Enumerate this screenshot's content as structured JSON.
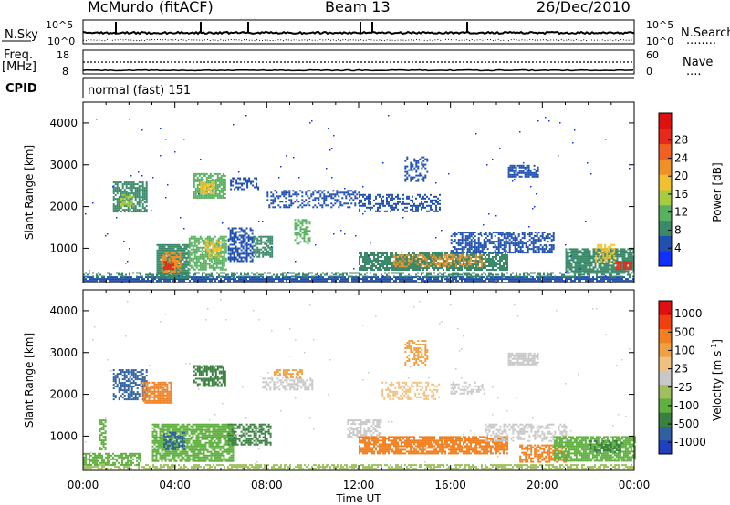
{
  "header": {
    "station": "McMurdo (fitACF)",
    "beam": "Beam 13",
    "date": "26/Dec/2010"
  },
  "noise_panel": {
    "left_label": "N.Sky",
    "right_label": "N.Search",
    "right_label_marker": "........",
    "left_tick_top": "10^5",
    "left_tick_bottom": "10^0",
    "right_tick_top": "10^5",
    "right_tick_bottom": "10^0"
  },
  "freq_panel": {
    "left_label_line1": "Freq.",
    "left_label_line2": "[MHz]",
    "left_tick_top": "18",
    "left_tick_bottom": "8",
    "right_label": "Nave",
    "right_label_marker": "....",
    "right_tick_top": "60",
    "right_tick_bottom": "0"
  },
  "cpid_panel": {
    "label": "CPID",
    "mode_text": "normal (fast) 151"
  },
  "chart_data": [
    {
      "type": "heatmap",
      "name": "power",
      "ylabel": "Slant Range [km]",
      "xlabel": "",
      "x_range_hours": [
        0,
        24
      ],
      "y_range_km": [
        180,
        4500
      ],
      "y_ticks": [
        "1000",
        "2000",
        "3000",
        "4000"
      ],
      "x_ticks": [
        "00:00",
        "04:00",
        "08:00",
        "12:00",
        "16:00",
        "20:00",
        "00:00"
      ],
      "colorbar": {
        "label": "Power [dB]",
        "ticks": [
          "4",
          "8",
          "12",
          "16",
          "20",
          "24",
          "28"
        ],
        "colors": [
          "#1030ff",
          "#2050b0",
          "#3a8a6a",
          "#58b060",
          "#a8cc40",
          "#f0c030",
          "#f09028",
          "#f06020",
          "#e82818",
          "#e01010"
        ]
      },
      "regions": [
        {
          "t0": 0.0,
          "t1": 24.0,
          "r0": 200,
          "r1": 330,
          "color": "#2050b0",
          "density": 0.85
        },
        {
          "t0": 0.0,
          "t1": 24.0,
          "r0": 330,
          "r1": 430,
          "color": "#3a8a6a",
          "density": 0.45
        },
        {
          "t0": 3.2,
          "t1": 4.6,
          "r0": 300,
          "r1": 1100,
          "color": "#3a8a6a",
          "density": 0.9
        },
        {
          "t0": 3.4,
          "t1": 4.2,
          "r0": 450,
          "r1": 900,
          "color": "#f09028",
          "density": 0.7
        },
        {
          "t0": 3.5,
          "t1": 3.9,
          "r0": 500,
          "r1": 700,
          "color": "#e82818",
          "density": 0.8
        },
        {
          "t0": 4.6,
          "t1": 6.2,
          "r0": 500,
          "r1": 1300,
          "color": "#58b060",
          "density": 0.8
        },
        {
          "t0": 5.3,
          "t1": 6.0,
          "r0": 800,
          "r1": 1200,
          "color": "#f0c030",
          "density": 0.6
        },
        {
          "t0": 6.3,
          "t1": 7.4,
          "r0": 700,
          "r1": 1500,
          "color": "#2050b0",
          "density": 0.6
        },
        {
          "t0": 7.4,
          "t1": 8.2,
          "r0": 800,
          "r1": 1300,
          "color": "#3a8a6a",
          "density": 0.7
        },
        {
          "t0": 1.3,
          "t1": 2.8,
          "r0": 1900,
          "r1": 2600,
          "color": "#3a8a6a",
          "density": 0.75
        },
        {
          "t0": 1.6,
          "t1": 2.2,
          "r0": 2000,
          "r1": 2300,
          "color": "#a8cc40",
          "density": 0.6
        },
        {
          "t0": 4.8,
          "t1": 6.2,
          "r0": 2200,
          "r1": 2800,
          "color": "#58b060",
          "density": 0.8
        },
        {
          "t0": 5.1,
          "t1": 5.7,
          "r0": 2300,
          "r1": 2600,
          "color": "#f0c030",
          "density": 0.6
        },
        {
          "t0": 6.4,
          "t1": 7.6,
          "r0": 2400,
          "r1": 2700,
          "color": "#2050b0",
          "density": 0.55
        },
        {
          "t0": 8.0,
          "t1": 12.0,
          "r0": 2000,
          "r1": 2400,
          "color": "#2050b0",
          "density": 0.35
        },
        {
          "t0": 9.2,
          "t1": 9.9,
          "r0": 1100,
          "r1": 1700,
          "color": "#58b060",
          "density": 0.6
        },
        {
          "t0": 12.0,
          "t1": 15.5,
          "r0": 1900,
          "r1": 2300,
          "color": "#2050b0",
          "density": 0.45
        },
        {
          "t0": 14.0,
          "t1": 15.0,
          "r0": 2600,
          "r1": 3200,
          "color": "#2050b0",
          "density": 0.4
        },
        {
          "t0": 12.0,
          "t1": 18.5,
          "r0": 500,
          "r1": 900,
          "color": "#3a8a6a",
          "density": 0.8
        },
        {
          "t0": 13.5,
          "t1": 17.5,
          "r0": 550,
          "r1": 850,
          "color": "#f09028",
          "density": 0.45
        },
        {
          "t0": 16.0,
          "t1": 20.5,
          "r0": 900,
          "r1": 1400,
          "color": "#2050b0",
          "density": 0.55
        },
        {
          "t0": 18.5,
          "t1": 19.8,
          "r0": 2700,
          "r1": 3000,
          "color": "#2050b0",
          "density": 0.6
        },
        {
          "t0": 21.0,
          "t1": 24.0,
          "r0": 400,
          "r1": 1000,
          "color": "#3a8a6a",
          "density": 0.85
        },
        {
          "t0": 22.3,
          "t1": 23.1,
          "r0": 700,
          "r1": 1100,
          "color": "#f0c030",
          "density": 0.5
        },
        {
          "t0": 23.2,
          "t1": 23.9,
          "r0": 500,
          "r1": 700,
          "color": "#e82818",
          "density": 0.85
        }
      ],
      "noise_density": 0.004
    },
    {
      "type": "heatmap",
      "name": "velocity",
      "ylabel": "Slant Range [km]",
      "xlabel": "Time UT",
      "x_range_hours": [
        0,
        24
      ],
      "y_range_km": [
        180,
        4500
      ],
      "y_ticks": [
        "1000",
        "2000",
        "3000",
        "4000"
      ],
      "x_ticks": [
        "00:00",
        "04:00",
        "08:00",
        "12:00",
        "16:00",
        "20:00",
        "00:00"
      ],
      "colorbar": {
        "label": "Velocity [m s",
        "label_sup": "-1",
        "label_end": "]",
        "ticks": [
          "1000",
          "500",
          "100",
          "25",
          "-25",
          "-100",
          "-500",
          "-1000"
        ],
        "colors": [
          "#2040c0",
          "#3060a0",
          "#3a8040",
          "#60b040",
          "#a0c060",
          "#c8c8c8",
          "#f0c080",
          "#f0a040",
          "#f08020",
          "#f04010",
          "#e01010"
        ]
      },
      "regions": [
        {
          "t0": 0.0,
          "t1": 24.0,
          "r0": 200,
          "r1": 330,
          "color": "#a0c060",
          "density": 0.6
        },
        {
          "t0": 0.0,
          "t1": 2.5,
          "r0": 330,
          "r1": 600,
          "color": "#60b040",
          "density": 0.7
        },
        {
          "t0": 0.7,
          "t1": 1.0,
          "r0": 700,
          "r1": 1400,
          "color": "#60b040",
          "density": 0.6
        },
        {
          "t0": 1.3,
          "t1": 2.8,
          "r0": 1900,
          "r1": 2600,
          "color": "#3060a0",
          "density": 0.6
        },
        {
          "t0": 2.6,
          "t1": 3.8,
          "r0": 1800,
          "r1": 2300,
          "color": "#f08020",
          "density": 0.75
        },
        {
          "t0": 3.0,
          "t1": 6.5,
          "r0": 400,
          "r1": 1300,
          "color": "#60b040",
          "density": 0.8
        },
        {
          "t0": 3.5,
          "t1": 4.4,
          "r0": 700,
          "r1": 1100,
          "color": "#3060a0",
          "density": 0.6
        },
        {
          "t0": 4.8,
          "t1": 6.2,
          "r0": 2200,
          "r1": 2700,
          "color": "#3a8040",
          "density": 0.7
        },
        {
          "t0": 6.3,
          "t1": 8.2,
          "r0": 800,
          "r1": 1300,
          "color": "#3a8040",
          "density": 0.6
        },
        {
          "t0": 7.8,
          "t1": 10.0,
          "r0": 2100,
          "r1": 2400,
          "color": "#c8c8c8",
          "density": 0.55
        },
        {
          "t0": 8.3,
          "t1": 9.5,
          "r0": 2400,
          "r1": 2600,
          "color": "#f0a040",
          "density": 0.5
        },
        {
          "t0": 11.5,
          "t1": 13.0,
          "r0": 1000,
          "r1": 1400,
          "color": "#c8c8c8",
          "density": 0.6
        },
        {
          "t0": 12.0,
          "t1": 18.5,
          "r0": 600,
          "r1": 1000,
          "color": "#f08020",
          "density": 0.8
        },
        {
          "t0": 13.0,
          "t1": 15.5,
          "r0": 1900,
          "r1": 2300,
          "color": "#f0c080",
          "density": 0.45
        },
        {
          "t0": 14.0,
          "t1": 15.0,
          "r0": 2700,
          "r1": 3300,
          "color": "#f0a040",
          "density": 0.45
        },
        {
          "t0": 17.5,
          "t1": 21.0,
          "r0": 900,
          "r1": 1300,
          "color": "#c8c8c8",
          "density": 0.45
        },
        {
          "t0": 16.0,
          "t1": 17.5,
          "r0": 2000,
          "r1": 2300,
          "color": "#c8c8c8",
          "density": 0.5
        },
        {
          "t0": 18.5,
          "t1": 19.8,
          "r0": 2700,
          "r1": 3000,
          "color": "#c8c8c8",
          "density": 0.7
        },
        {
          "t0": 19.0,
          "t1": 21.0,
          "r0": 400,
          "r1": 800,
          "color": "#f08020",
          "density": 0.6
        },
        {
          "t0": 20.5,
          "t1": 24.0,
          "r0": 400,
          "r1": 1000,
          "color": "#60b040",
          "density": 0.8
        },
        {
          "t0": 22.0,
          "t1": 23.5,
          "r0": 600,
          "r1": 900,
          "color": "#3a8040",
          "density": 0.5
        }
      ],
      "noise_density": 0.004
    }
  ]
}
